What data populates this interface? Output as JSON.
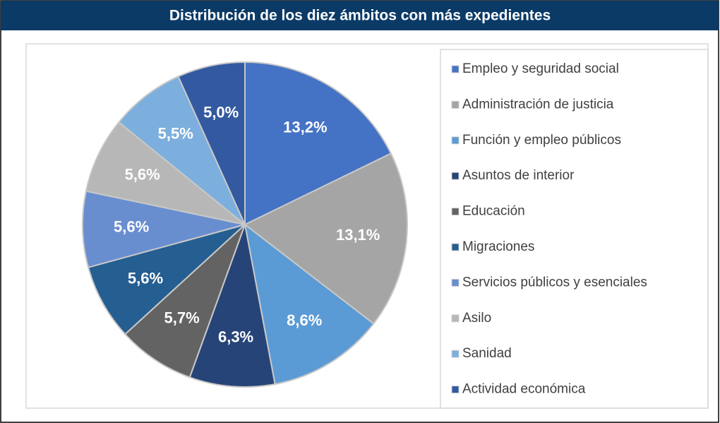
{
  "chart_data": {
    "type": "pie",
    "title": "Distribución de los diez ámbitos con más expedientes",
    "categories": [
      "Empleo y seguridad social",
      "Administración de justicia",
      "Función y empleo públicos",
      "Asuntos de interior",
      "Educación",
      "Migraciones",
      "Servicios públicos y esenciales",
      "Asilo",
      "Sanidad",
      "Actividad económica"
    ],
    "values": [
      13.2,
      13.1,
      8.6,
      6.3,
      5.7,
      5.6,
      5.6,
      5.6,
      5.5,
      5.0
    ],
    "value_labels": [
      "13,2%",
      "13,1%",
      "8,6%",
      "6,3%",
      "5,7%",
      "5,6%",
      "5,6%",
      "5,6%",
      "5,5%",
      "5,0%"
    ],
    "colors": [
      "#4472c4",
      "#a5a5a5",
      "#5b9bd5",
      "#264478",
      "#636363",
      "#255e91",
      "#698ed0",
      "#b7b7b7",
      "#7cafdd",
      "#335aa1"
    ],
    "legend": "right"
  }
}
